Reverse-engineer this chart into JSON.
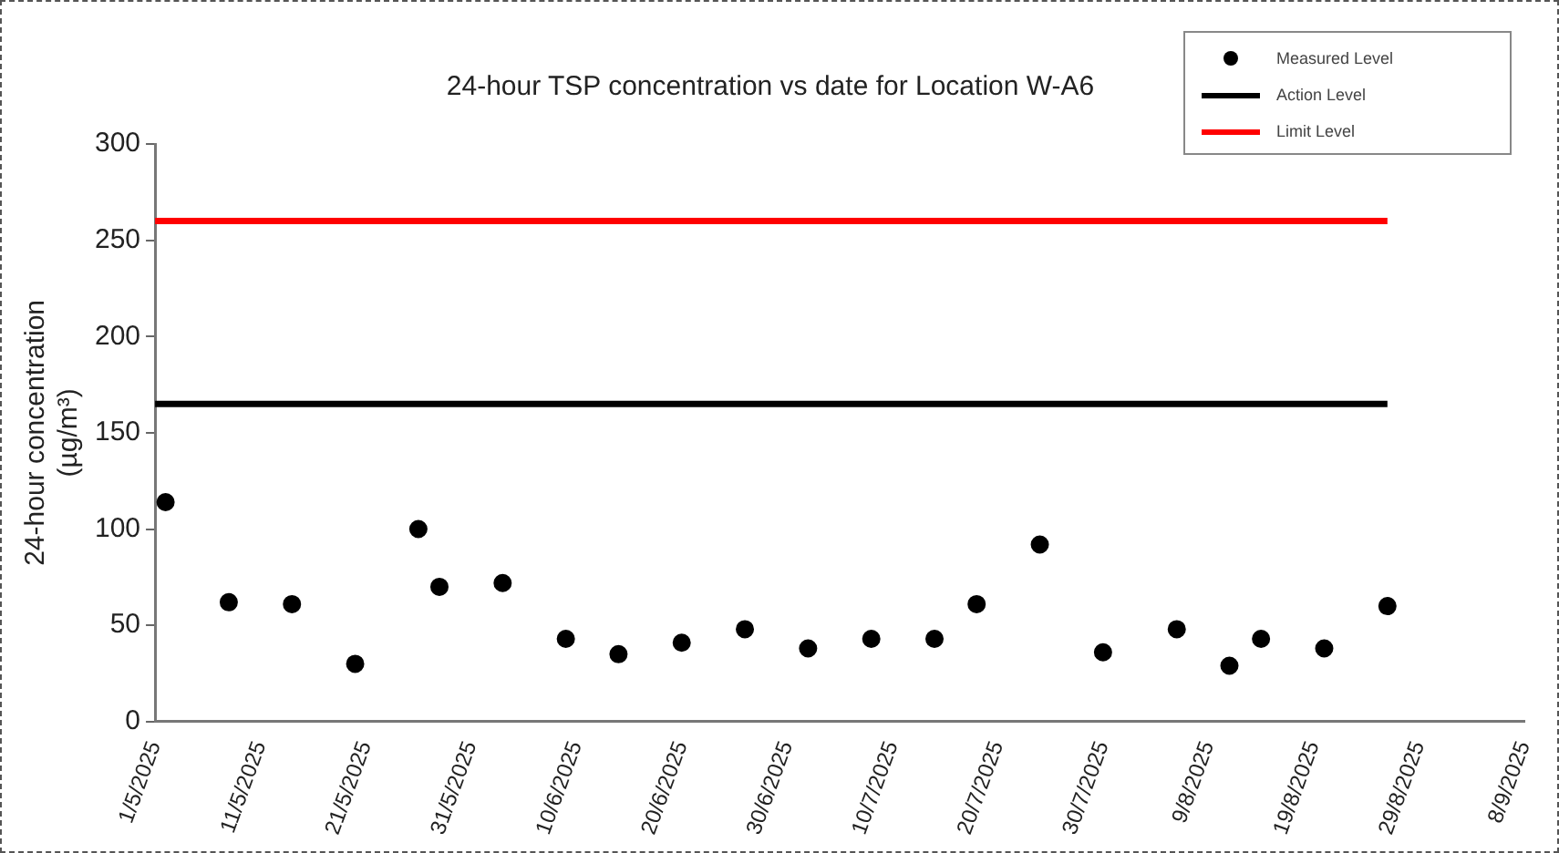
{
  "chart_data": {
    "type": "scatter",
    "title": "24-hour TSP concentration vs date for Location W-A6",
    "ylabel": "24-hour concentration (µg/m³)",
    "xlim": [
      "2025-05-01",
      "2025-09-08"
    ],
    "xticks": [
      {
        "value": "2025-05-01",
        "label": "1/5/2025"
      },
      {
        "value": "2025-05-11",
        "label": "11/5/2025"
      },
      {
        "value": "2025-05-21",
        "label": "21/5/2025"
      },
      {
        "value": "2025-05-31",
        "label": "31/5/2025"
      },
      {
        "value": "2025-06-10",
        "label": "10/6/2025"
      },
      {
        "value": "2025-06-20",
        "label": "20/6/2025"
      },
      {
        "value": "2025-06-30",
        "label": "30/6/2025"
      },
      {
        "value": "2025-07-10",
        "label": "10/7/2025"
      },
      {
        "value": "2025-07-20",
        "label": "20/7/2025"
      },
      {
        "value": "2025-07-30",
        "label": "30/7/2025"
      },
      {
        "value": "2025-08-09",
        "label": "9/8/2025"
      },
      {
        "value": "2025-08-19",
        "label": "19/8/2025"
      },
      {
        "value": "2025-08-29",
        "label": "29/8/2025"
      },
      {
        "value": "2025-09-08",
        "label": "8/9/2025"
      }
    ],
    "ylim": [
      0,
      300
    ],
    "yticks": [
      0,
      50,
      100,
      150,
      200,
      250,
      300
    ],
    "grid": false,
    "legend": "top right",
    "series": [
      {
        "name": "Measured Level",
        "marker": "circle",
        "color": "#000000",
        "x": [
          "2025-05-02",
          "2025-05-08",
          "2025-05-14",
          "2025-05-20",
          "2025-05-26",
          "2025-05-28",
          "2025-06-03",
          "2025-06-09",
          "2025-06-14",
          "2025-06-20",
          "2025-06-26",
          "2025-07-02",
          "2025-07-08",
          "2025-07-14",
          "2025-07-18",
          "2025-07-24",
          "2025-07-30",
          "2025-08-06",
          "2025-08-11",
          "2025-08-14",
          "2025-08-20",
          "2025-08-26"
        ],
        "values": [
          114,
          62,
          61,
          30,
          100,
          70,
          72,
          43,
          35,
          41,
          48,
          38,
          43,
          43,
          61,
          92,
          36,
          48,
          29,
          43,
          38,
          60
        ]
      },
      {
        "name": "Action Level",
        "type": "line",
        "marker": "none",
        "color": "#000000",
        "line_style": "solid",
        "x": [
          "2025-05-01",
          "2025-08-26"
        ],
        "values": [
          165,
          165
        ]
      },
      {
        "name": "Limit Level",
        "type": "line",
        "marker": "none",
        "color": "#ff0000",
        "line_style": "solid",
        "x": [
          "2025-05-01",
          "2025-08-26"
        ],
        "values": [
          260,
          260
        ]
      }
    ]
  }
}
